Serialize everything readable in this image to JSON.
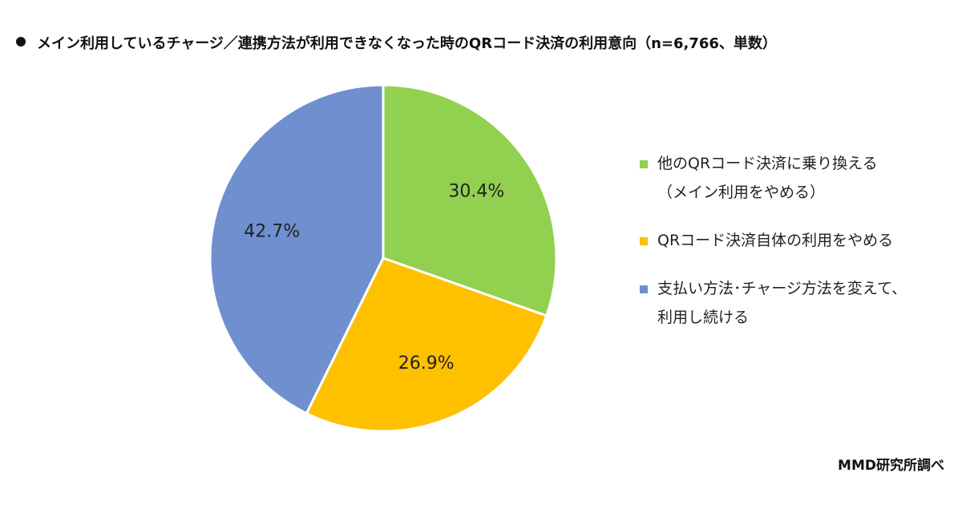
{
  "chart_data": {
    "type": "pie",
    "title": "メイン利用しているチャージ／連携方法が利用できなくなった時のQRコード決済の利用意向（n=6,766、単数）",
    "categories": [
      "他のQRコード決済に乗り換える（メイン利用をやめる）",
      "QRコード決済自体の利用をやめる",
      "支払い方法･チャージ方法を変えて、利用し続ける"
    ],
    "values": [
      30.4,
      26.9,
      42.7
    ],
    "value_labels": [
      "30.4%",
      "26.9%",
      "42.7%"
    ],
    "colors": [
      "#92d050",
      "#ffc000",
      "#6f8fcf"
    ],
    "source": "MMD研究所調べ"
  }
}
